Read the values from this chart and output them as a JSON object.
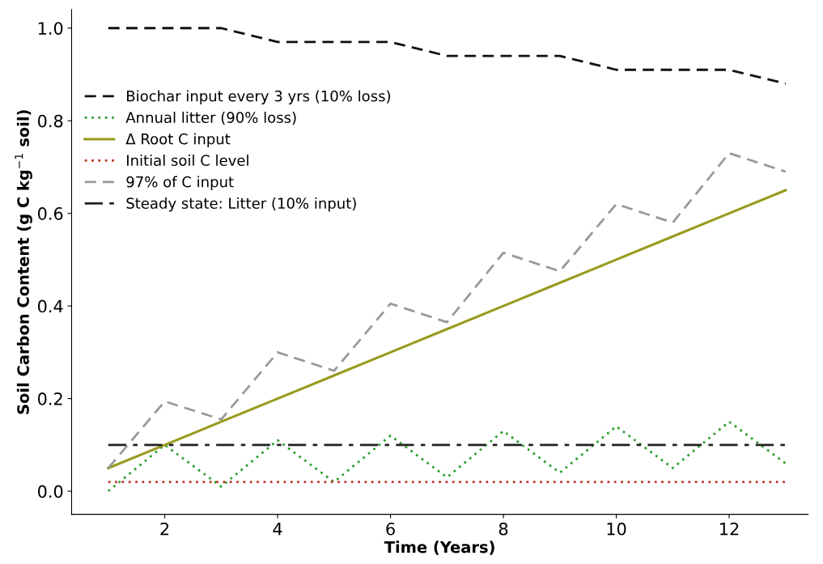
{
  "chart_data": {
    "type": "line",
    "xlabel": "Time (Years)",
    "ylabel": "Soil Carbon Content (g C kg$^{−1}$ soil)",
    "x": [
      1,
      2,
      3,
      4,
      5,
      6,
      7,
      8,
      9,
      10,
      11,
      12,
      13
    ],
    "series": [
      {
        "name": "Biochar input every 3 yrs (10% loss)",
        "color": "#111111",
        "line_style": "dashed",
        "values": [
          1.0,
          1.0,
          1.0,
          0.97,
          0.97,
          0.97,
          0.94,
          0.94,
          0.94,
          0.91,
          0.91,
          0.91,
          0.88
        ]
      },
      {
        "name": "Annual litter (90% loss)",
        "color": "#2ca02c",
        "line_style": "dotted",
        "values": [
          0.0,
          0.1,
          0.01,
          0.11,
          0.02,
          0.12,
          0.03,
          0.13,
          0.04,
          0.14,
          0.05,
          0.15,
          0.06
        ]
      },
      {
        "name": "Δ Root C input",
        "color": "#9a9a1e",
        "line_style": "solid",
        "values": [
          0.05,
          0.1,
          0.15,
          0.2,
          0.25,
          0.3,
          0.35,
          0.4,
          0.45,
          0.5,
          0.55,
          0.6,
          0.65
        ]
      },
      {
        "name": "Initial soil C level",
        "color": "#c0392b",
        "line_style": "dotted",
        "values": [
          0.02,
          0.02,
          0.02,
          0.02,
          0.02,
          0.02,
          0.02,
          0.02,
          0.02,
          0.02,
          0.02,
          0.02,
          0.02
        ]
      },
      {
        "name": "97% of C input",
        "color": "#999999",
        "line_style": "dashed",
        "values": [
          0.05,
          0.194,
          0.155,
          0.3,
          0.26,
          0.405,
          0.365,
          0.515,
          0.475,
          0.62,
          0.58,
          0.73,
          0.69
        ]
      },
      {
        "name": "Steady state: Litter (10% input)",
        "color": "#222222",
        "line_style": "dashdot",
        "values": [
          0.1,
          0.1,
          0.1,
          0.1,
          0.1,
          0.1,
          0.1,
          0.1,
          0.1,
          0.1,
          0.1,
          0.1,
          0.1
        ]
      }
    ],
    "xlim": [
      0.35,
      13.4
    ],
    "ylim": [
      -0.05,
      1.04
    ],
    "xticks": [
      2,
      4,
      6,
      8,
      10,
      12
    ],
    "yticks": [
      {
        "value": 0,
        "label": "0.0"
      },
      0.2,
      0.4,
      0.6,
      0.8,
      {
        "value": 1,
        "label": "1.0"
      }
    ],
    "grid": false,
    "legend": "left"
  }
}
